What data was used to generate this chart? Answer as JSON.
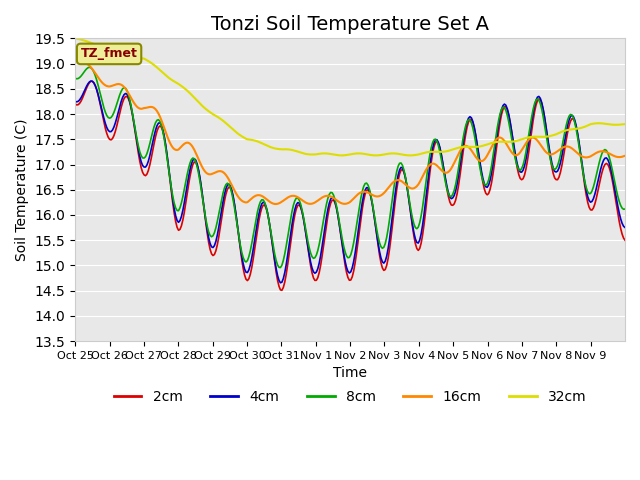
{
  "title": "Tonzi Soil Temperature Set A",
  "xlabel": "Time",
  "ylabel": "Soil Temperature (C)",
  "ylim": [
    13.5,
    19.5
  ],
  "yticks": [
    13.5,
    14.0,
    14.5,
    15.0,
    15.5,
    16.0,
    16.5,
    17.0,
    17.5,
    18.0,
    18.5,
    19.0,
    19.5
  ],
  "xtick_labels": [
    "Oct 25",
    "Oct 26",
    "Oct 27",
    "Oct 28",
    "Oct 29",
    "Oct 30",
    "Oct 31",
    "Nov 1",
    "Nov 2",
    "Nov 3",
    "Nov 4",
    "Nov 5",
    "Nov 6",
    "Nov 7",
    "Nov 8",
    "Nov 9"
  ],
  "line_colors": {
    "2cm": "#dd0000",
    "4cm": "#0000cc",
    "8cm": "#00aa00",
    "16cm": "#ff8800",
    "32cm": "#dddd00"
  },
  "legend_labels": [
    "2cm",
    "4cm",
    "8cm",
    "16cm",
    "32cm"
  ],
  "annotation_text": "TZ_fmet",
  "annotation_color": "#880000",
  "annotation_bg": "#eeee99",
  "bg_color": "#e8e8e8",
  "title_fontsize": 14,
  "axis_fontsize": 10,
  "legend_fontsize": 10
}
